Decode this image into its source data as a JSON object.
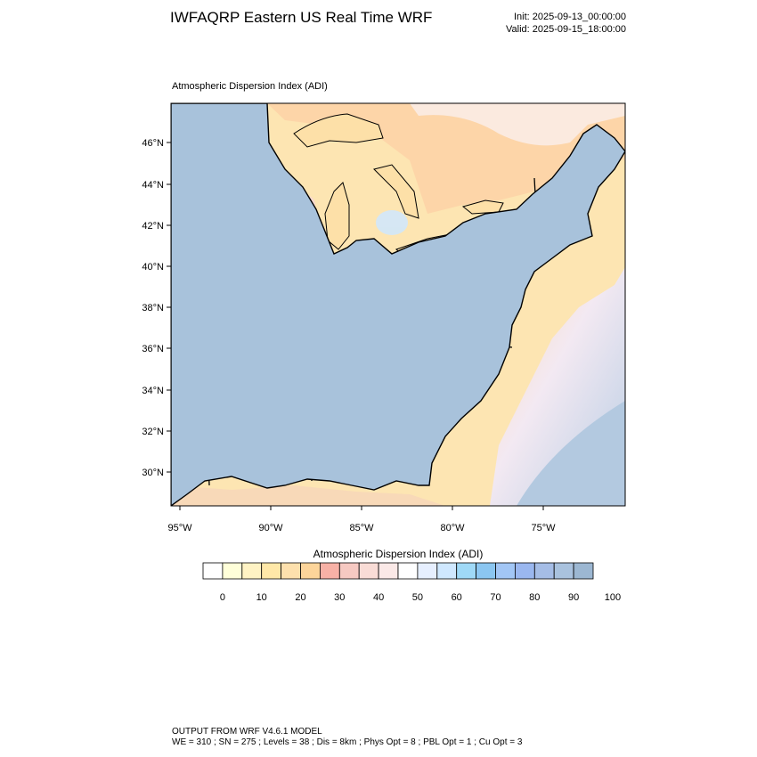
{
  "header": {
    "title": "IWFAQRP Eastern US Real Time WRF",
    "init": "Init: 2025-09-13_00:00:00",
    "valid": "Valid: 2025-09-15_18:00:00"
  },
  "map": {
    "title": "Atmospheric Dispersion Index   (ADI)",
    "lat_labels": [
      "46°N",
      "44°N",
      "42°N",
      "40°N",
      "38°N",
      "36°N",
      "34°N",
      "32°N",
      "30°N"
    ],
    "lon_labels": [
      "95°W",
      "90°W",
      "85°W",
      "80°W",
      "75°W"
    ],
    "colors": {
      "land_high_adi": "#a8c2db",
      "water_low_adi": "#fbe0a8",
      "ocean_high_adi": "#b3c9e0",
      "state_lines": "#000000",
      "county_lines": "#333333"
    }
  },
  "colorbar": {
    "title": "Atmospheric Dispersion Index  (ADI)",
    "tick_labels": [
      "0",
      "10",
      "20",
      "30",
      "40",
      "50",
      "60",
      "70",
      "80",
      "90",
      "100"
    ],
    "colors": [
      "#ffffff",
      "#ffffd9",
      "#fff3c4",
      "#ffe8a8",
      "#fde0ad",
      "#fdd59a",
      "#f7b1a6",
      "#f6c9c2",
      "#f9dcd6",
      "#fbe9e7",
      "#ffffff",
      "#e6efff",
      "#cfe8ff",
      "#9fd9f7",
      "#8bc6f1",
      "#a2c6f5",
      "#9ab7ef",
      "#a5bde6",
      "#a9c2de",
      "#9cb7d2"
    ]
  },
  "footer": {
    "line1": "OUTPUT FROM WRF V4.6.1 MODEL",
    "line2": "WE = 310 ; SN = 275 ; Levels = 38 ; Dis = 8km ; Phys Opt = 8 ; PBL Opt = 1 ; Cu Opt = 3"
  }
}
